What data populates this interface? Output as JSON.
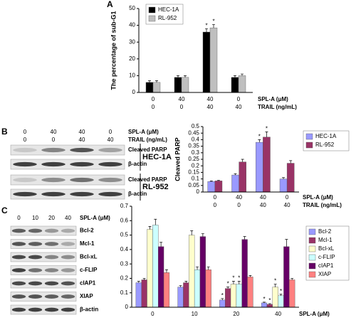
{
  "panel_labels": [
    "A",
    "B",
    "C"
  ],
  "chart_data": [
    {
      "type": "bar",
      "y_label": "The percentage of sub-G1",
      "categories": [
        "0",
        "40",
        "40",
        "0"
      ],
      "x_label": "SPL-A (μM)",
      "categories2": [
        "0",
        "0",
        "40",
        "40"
      ],
      "x_label2": "TRAIL (ng/mL)",
      "ylim": [
        0,
        50
      ],
      "yticks": [
        0,
        10,
        20,
        30,
        40,
        50
      ],
      "series": [
        {
          "name": "HEC-1A",
          "color": "#000000",
          "values": [
            6,
            9,
            36,
            9
          ],
          "errors": [
            1,
            1,
            2,
            1
          ],
          "stars": [
            null,
            null,
            "*",
            null
          ]
        },
        {
          "name": "RL-952",
          "color": "#bfbfbf",
          "values": [
            6,
            9,
            38.5,
            10
          ],
          "errors": [
            1,
            1,
            2,
            1
          ],
          "stars": [
            null,
            null,
            "*",
            null
          ]
        }
      ]
    },
    {
      "type": "bar",
      "y_label": "Cleaved PARP",
      "categories": [
        "0",
        "40",
        "40",
        "0"
      ],
      "x_label": "SPL-A (μM)",
      "categories2": [
        "0",
        "0",
        "40",
        "40"
      ],
      "x_label2": "TRAIL (ng/mL)",
      "ylim": [
        0,
        0.5
      ],
      "yticks": [
        0,
        0.05,
        0.1,
        0.15,
        0.2,
        0.25,
        0.3,
        0.35,
        0.4,
        0.45,
        0.5
      ],
      "series": [
        {
          "name": "HEC-1A",
          "color": "#9999ff",
          "values": [
            0.08,
            0.13,
            0.38,
            0.1
          ],
          "errors": [
            0.005,
            0.01,
            0.02,
            0.01
          ],
          "stars": [
            null,
            null,
            "*",
            null
          ]
        },
        {
          "name": "RL-952",
          "color": "#993366",
          "values": [
            0.085,
            0.23,
            0.42,
            0.22
          ],
          "errors": [
            0.005,
            0.02,
            0.04,
            0.02
          ],
          "stars": [
            null,
            null,
            "*",
            null
          ]
        }
      ]
    },
    {
      "type": "bar",
      "categories": [
        "0",
        "10",
        "20",
        "40"
      ],
      "x_label": "SPL-A (μM)",
      "ylim": [
        0,
        0.7
      ],
      "yticks": [
        0,
        0.1,
        0.2,
        0.3,
        0.4,
        0.5,
        0.6,
        0.7
      ],
      "series": [
        {
          "name": "Bcl-2",
          "color": "#9999ff",
          "values": [
            0.17,
            0.14,
            0.05,
            0.03
          ],
          "errors": [
            0.01,
            0.01,
            0.01,
            0.005
          ],
          "stars": [
            null,
            null,
            "*",
            "*"
          ]
        },
        {
          "name": "Mcl-1",
          "color": "#993366",
          "values": [
            0.19,
            0.17,
            0.13,
            0.02
          ],
          "errors": [
            0.01,
            0.01,
            0.01,
            0.005
          ],
          "stars": [
            null,
            null,
            "*",
            "*"
          ]
        },
        {
          "name": "Bcl-xL",
          "color": "#ffffcc",
          "values": [
            0.54,
            0.5,
            0.16,
            0.14
          ],
          "errors": [
            0.02,
            0.03,
            0.02,
            0.02
          ],
          "stars": [
            null,
            null,
            "*",
            "*"
          ]
        },
        {
          "name": "c-FLIP",
          "color": "#ccffff",
          "values": [
            0.57,
            0.26,
            0.16,
            0.08
          ],
          "errors": [
            0.04,
            0.02,
            0.02,
            0.01
          ],
          "stars": [
            null,
            null,
            "*",
            "*"
          ]
        },
        {
          "name": "cIAP1",
          "color": "#660066",
          "values": [
            0.42,
            0.49,
            0.47,
            0.42
          ],
          "errors": [
            0.03,
            0.02,
            0.02,
            0.05
          ],
          "stars": [
            null,
            null,
            null,
            null
          ]
        },
        {
          "name": "XIAP",
          "color": "#ff8080",
          "values": [
            0.24,
            0.26,
            0.21,
            0.19
          ],
          "errors": [
            0.02,
            0.02,
            0.01,
            0.01
          ],
          "stars": [
            null,
            null,
            null,
            null
          ]
        }
      ]
    }
  ],
  "blots": [
    {
      "header_rows": [
        {
          "label": "SPL-A (μM)",
          "values": [
            "0",
            "40",
            "40",
            "0"
          ]
        },
        {
          "label": "TRAIL (ng/mL)",
          "values": [
            "0",
            "0",
            "40",
            "40"
          ]
        }
      ],
      "rows": [
        "Cleaved PARP",
        "β-actin",
        "Cleaved PARP",
        "β-actin"
      ],
      "groups": [
        "HEC-1A",
        "RL-952"
      ]
    },
    {
      "header_rows": [
        {
          "label": "SPL-A (μM)",
          "values": [
            "0",
            "10",
            "20",
            "40"
          ]
        }
      ],
      "rows": [
        "Bcl-2",
        "Mcl-1",
        "Bcl-xL",
        "c-FLIP",
        "cIAP1",
        "XIAP",
        "β-actin"
      ]
    }
  ]
}
